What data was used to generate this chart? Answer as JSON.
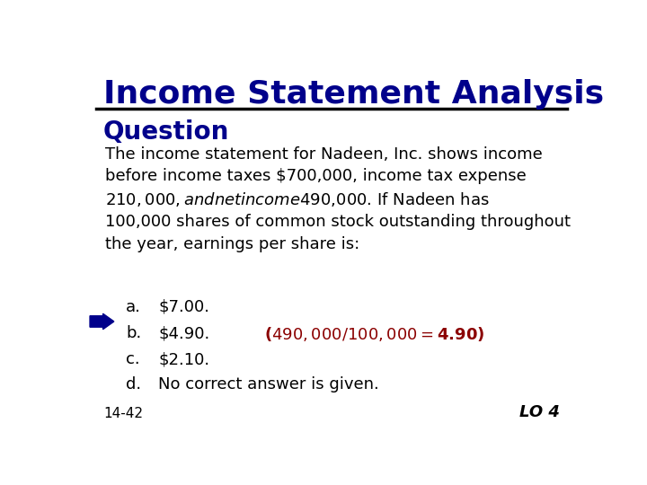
{
  "title": "Income Statement Analysis",
  "title_color": "#00008B",
  "title_fontsize": 26,
  "subtitle": "Question",
  "subtitle_color": "#00008B",
  "subtitle_fontsize": 20,
  "body_text": "The income statement for Nadeen, Inc. shows income\nbefore income taxes $700,000, income tax expense\n$210,000, and net income $490,000. If Nadeen has\n100,000 shares of common stock outstanding throughout\nthe year, earnings per share is:",
  "body_color": "#000000",
  "body_fontsize": 13,
  "options": [
    {
      "label": "a.",
      "text": "$7.00.",
      "color": "#000000"
    },
    {
      "label": "b.",
      "text": "$4.90.",
      "color": "#000000"
    },
    {
      "label": "c.",
      "text": "$2.10.",
      "color": "#000000"
    },
    {
      "label": "d.",
      "text": "No correct answer is given.",
      "color": "#000000"
    }
  ],
  "answer_annotation": "($490,000 / 100,000 = $4.90)",
  "answer_color": "#8B0000",
  "answer_row": 1,
  "arrow_color": "#00008B",
  "footer_left": "14-42",
  "footer_right": "LO 4",
  "footer_color": "#000000",
  "footer_fontsize": 11,
  "bg_color": "#FFFFFF",
  "line_color": "#000000",
  "option_fontsize": 13,
  "indent_label": 0.09,
  "indent_text": 0.155
}
